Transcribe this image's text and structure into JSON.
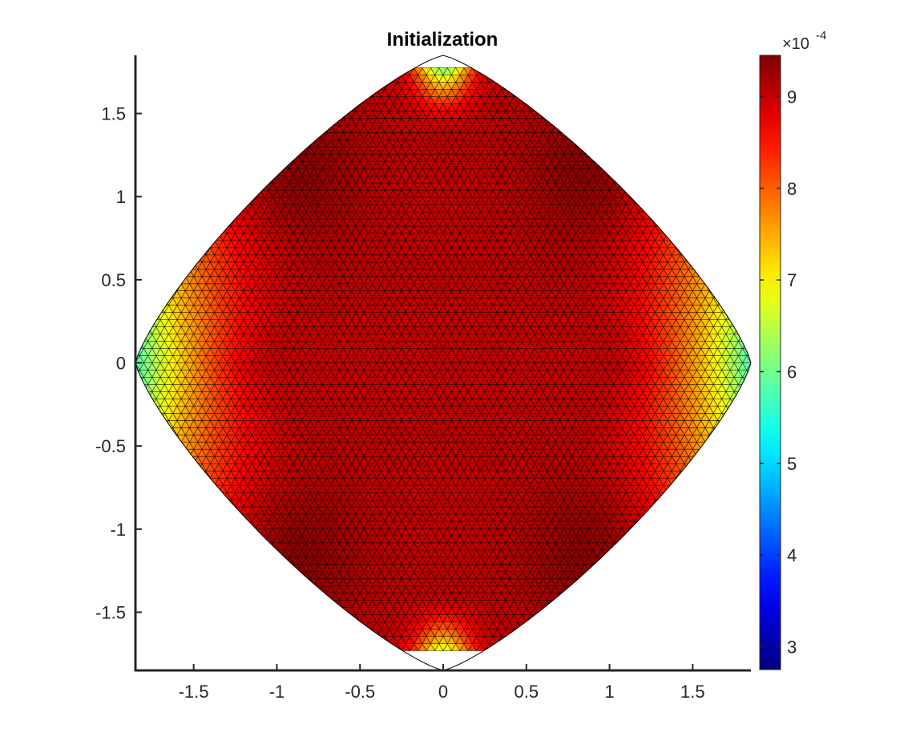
{
  "chart_data": {
    "type": "heatmap",
    "title": "Initialization",
    "xlabel": "",
    "ylabel": "",
    "xlim": [
      -1.85,
      1.85
    ],
    "ylim": [
      -1.85,
      1.85
    ],
    "x_ticks": [
      -1.5,
      -1,
      -0.5,
      0,
      0.5,
      1,
      1.5
    ],
    "x_tick_labels": [
      "-1.5",
      "-1",
      "-0.5",
      "0",
      "0.5",
      "1",
      "1.5"
    ],
    "y_ticks": [
      1.5,
      1,
      0.5,
      0,
      -0.5,
      -1,
      -1.5
    ],
    "y_tick_labels": [
      "1.5",
      "1",
      "0.5",
      "0",
      "-0.5",
      "-1",
      "-1.5"
    ],
    "grid": false,
    "colormap": "jet",
    "colorbar": {
      "location": "right",
      "limits": [
        2.75,
        9.45
      ],
      "exponent_label": "×10",
      "exponent": "-4",
      "ticks": [
        3,
        4,
        5,
        6,
        7,
        8,
        9
      ],
      "tick_labels": [
        "3",
        "4",
        "5",
        "6",
        "7",
        "8",
        "9"
      ]
    },
    "mesh": {
      "shape": "rounded diamond domain, triangulated surface",
      "vertices": [
        [
          1.85,
          0
        ],
        [
          0,
          1.85
        ],
        [
          -1.85,
          0
        ],
        [
          0,
          -1.85
        ]
      ],
      "edge_color": "#000000",
      "value_at_center": 9.0,
      "value_max": 9.45,
      "value_at_left_right_tips": 5.7,
      "value_at_top_bottom_tips": 5.0
    }
  }
}
